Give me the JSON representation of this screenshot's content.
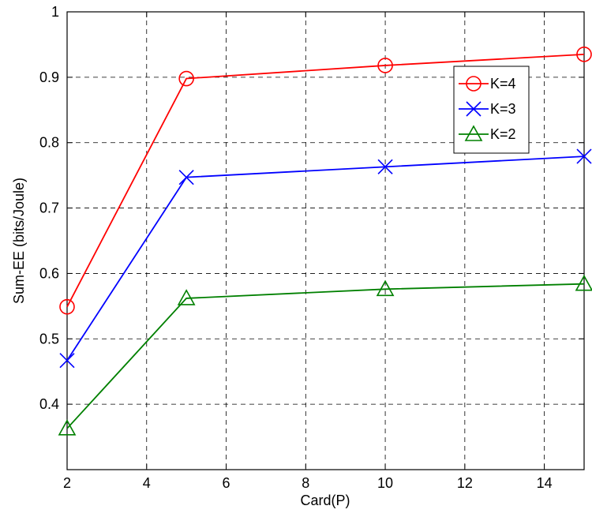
{
  "chart_data": {
    "type": "line",
    "xlabel": "Card(P)",
    "ylabel": "Sum-EE (bits/Joule)",
    "xlim": [
      2,
      15
    ],
    "ylim": [
      0.3,
      1.0
    ],
    "xticks": [
      2,
      4,
      6,
      8,
      10,
      12,
      14
    ],
    "xtick_labels": [
      "2",
      "4",
      "6",
      "8",
      "10",
      "12",
      "14"
    ],
    "yticks": [
      0.4,
      0.5,
      0.6,
      0.7,
      0.8,
      0.9,
      1.0
    ],
    "ytick_labels": [
      "0.4",
      "0.5",
      "0.6",
      "0.7",
      "0.8",
      "0.9",
      "1"
    ],
    "grid": true,
    "legend_position": "top-right",
    "x": [
      2,
      5,
      10,
      15
    ],
    "series": [
      {
        "name": "K=4",
        "values": [
          0.549,
          0.898,
          0.918,
          0.935
        ],
        "color": "#ff0000",
        "marker": "circle"
      },
      {
        "name": "K=3",
        "values": [
          0.467,
          0.747,
          0.763,
          0.779
        ],
        "color": "#0000ff",
        "marker": "x"
      },
      {
        "name": "K=2",
        "values": [
          0.363,
          0.562,
          0.576,
          0.584
        ],
        "color": "#008000",
        "marker": "triangle"
      }
    ]
  }
}
